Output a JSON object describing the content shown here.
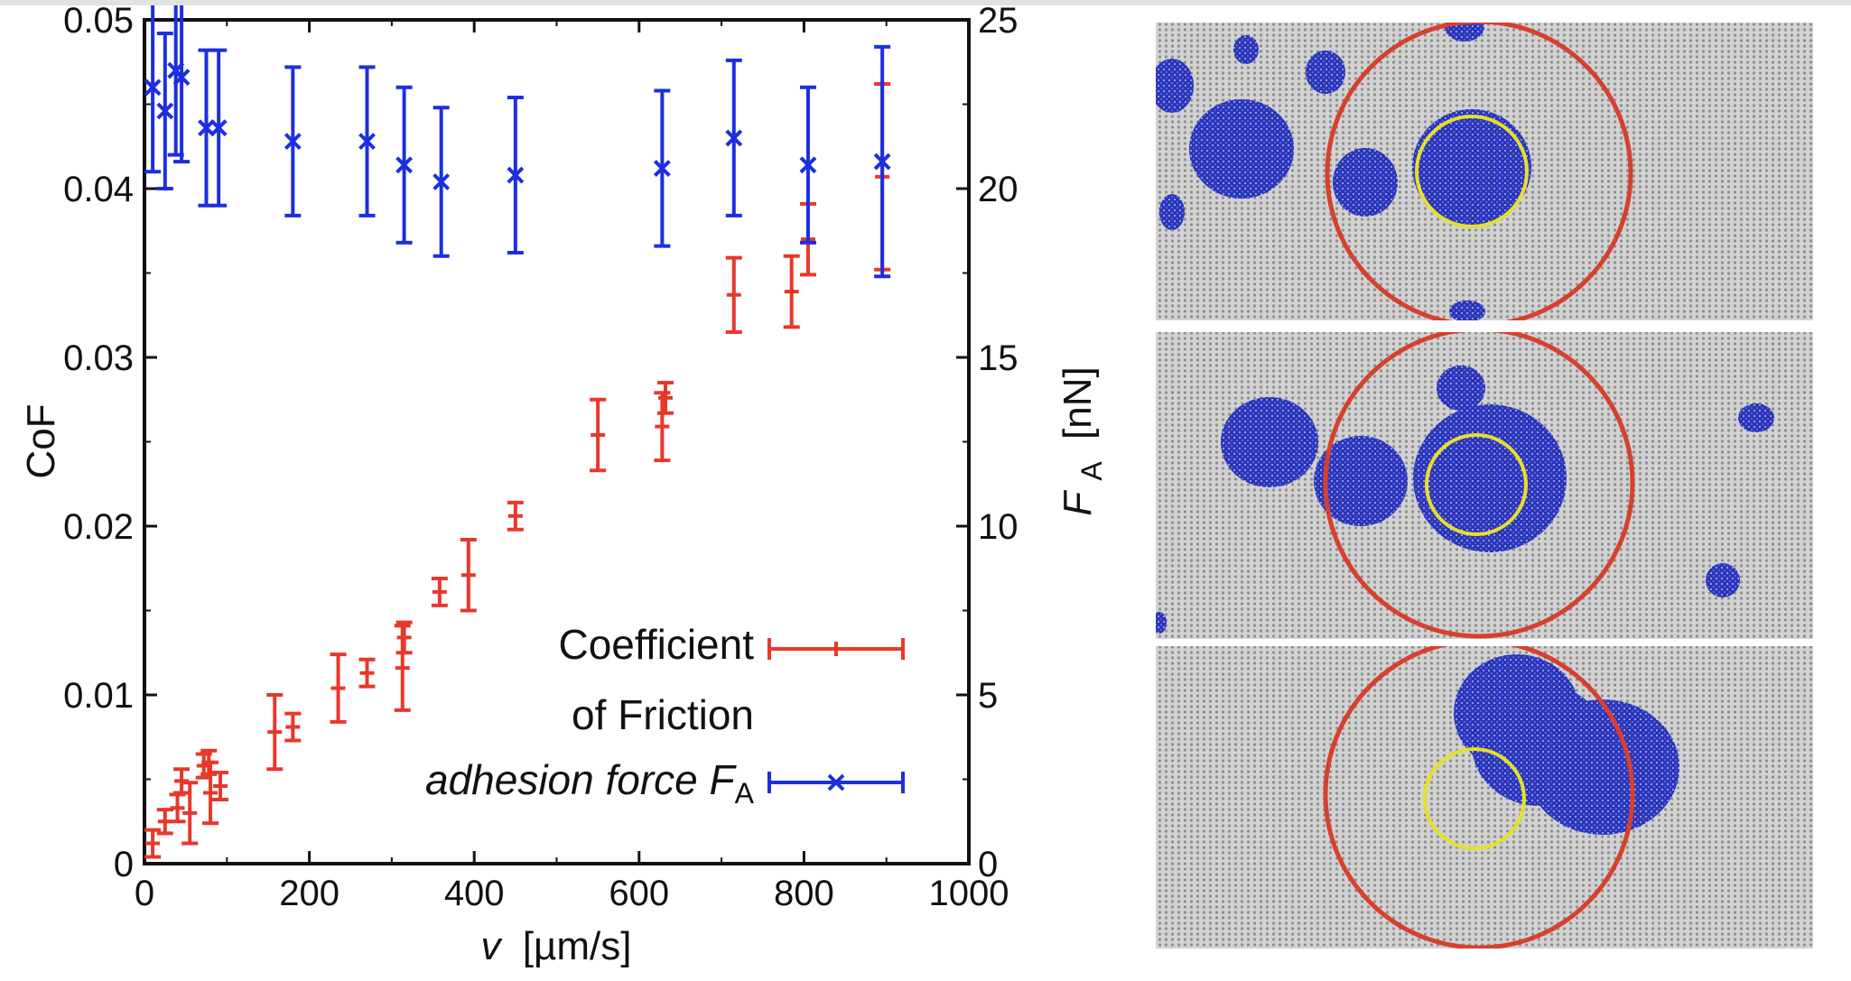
{
  "chart_data": {
    "type": "scatter",
    "xlabel_var": "v",
    "xlabel_unit": "[µm/s]",
    "ylabel": "CoF",
    "y2label_var": "F",
    "y2label_sub": "A",
    "y2label_unit": "[nN]",
    "xlim": [
      0,
      1000
    ],
    "ylim": [
      0,
      0.05
    ],
    "y2lim": [
      0,
      25
    ],
    "x_ticks": [
      "0",
      "200",
      "400",
      "600",
      "800",
      "1000"
    ],
    "y_ticks": [
      "0",
      "0.01",
      "0.02",
      "0.03",
      "0.04",
      "0.05"
    ],
    "y2_ticks": [
      "0",
      "5",
      "10",
      "15",
      "20",
      "25"
    ],
    "legend": {
      "cof_line1": "Coefficient",
      "cof_line2": "of Friction",
      "fa_text": "adhesion force F",
      "fa_sub": "A",
      "placement": "bottom-right"
    },
    "series": [
      {
        "name": "Coefficient of Friction",
        "axis": "left",
        "color": "#e8382b",
        "marker": "plus",
        "points": [
          {
            "x": 10,
            "y": 0.0012,
            "err": 0.0008
          },
          {
            "x": 25,
            "y": 0.0025,
            "err": 0.0007
          },
          {
            "x": 40,
            "y": 0.0033,
            "err": 0.0008
          },
          {
            "x": 45,
            "y": 0.0049,
            "err": 0.0007
          },
          {
            "x": 55,
            "y": 0.003,
            "err": 0.0018
          },
          {
            "x": 72,
            "y": 0.0058,
            "err": 0.0007
          },
          {
            "x": 78,
            "y": 0.006,
            "err": 0.0007
          },
          {
            "x": 80,
            "y": 0.0042,
            "err": 0.0018
          },
          {
            "x": 92,
            "y": 0.0046,
            "err": 0.0008
          },
          {
            "x": 158,
            "y": 0.0078,
            "err": 0.0022
          },
          {
            "x": 180,
            "y": 0.0081,
            "err": 0.0008
          },
          {
            "x": 235,
            "y": 0.0104,
            "err": 0.002
          },
          {
            "x": 270,
            "y": 0.0113,
            "err": 0.0008
          },
          {
            "x": 313,
            "y": 0.0116,
            "err": 0.0025
          },
          {
            "x": 315,
            "y": 0.0134,
            "err": 0.0009
          },
          {
            "x": 358,
            "y": 0.0161,
            "err": 0.0008
          },
          {
            "x": 393,
            "y": 0.0171,
            "err": 0.0021
          },
          {
            "x": 450,
            "y": 0.0206,
            "err": 0.0008
          },
          {
            "x": 550,
            "y": 0.0254,
            "err": 0.0021
          },
          {
            "x": 628,
            "y": 0.0259,
            "err": 0.002
          },
          {
            "x": 632,
            "y": 0.0276,
            "err": 0.0009
          },
          {
            "x": 715,
            "y": 0.0337,
            "err": 0.0022
          },
          {
            "x": 785,
            "y": 0.0339,
            "err": 0.0021
          },
          {
            "x": 805,
            "y": 0.037,
            "err": 0.0021
          },
          {
            "x": 895,
            "y": 0.0407,
            "err": 0.0055
          }
        ]
      },
      {
        "name": "adhesion force FA",
        "axis": "right",
        "color": "#1c2fe0",
        "marker": "x",
        "points": [
          {
            "x": 10,
            "y": 23.0,
            "err": 2.5
          },
          {
            "x": 25,
            "y": 22.3,
            "err": 2.3
          },
          {
            "x": 38,
            "y": 23.5,
            "err": 2.5
          },
          {
            "x": 45,
            "y": 23.3,
            "err": 2.5
          },
          {
            "x": 75,
            "y": 21.8,
            "err": 2.3
          },
          {
            "x": 90,
            "y": 21.8,
            "err": 2.3
          },
          {
            "x": 180,
            "y": 21.4,
            "err": 2.2
          },
          {
            "x": 270,
            "y": 21.4,
            "err": 2.2
          },
          {
            "x": 315,
            "y": 20.7,
            "err": 2.3
          },
          {
            "x": 360,
            "y": 20.2,
            "err": 2.2
          },
          {
            "x": 450,
            "y": 20.4,
            "err": 2.3
          },
          {
            "x": 628,
            "y": 20.6,
            "err": 2.3
          },
          {
            "x": 715,
            "y": 21.5,
            "err": 2.3
          },
          {
            "x": 805,
            "y": 20.7,
            "err": 2.3
          },
          {
            "x": 895,
            "y": 20.8,
            "err": 3.4
          }
        ]
      }
    ]
  },
  "panels": {
    "description_colors": {
      "substrate": "#c8c8c8",
      "cluster": "#2d36b8",
      "outer_circle": "#d6402f",
      "inner_circle": "#e6e02a"
    }
  }
}
